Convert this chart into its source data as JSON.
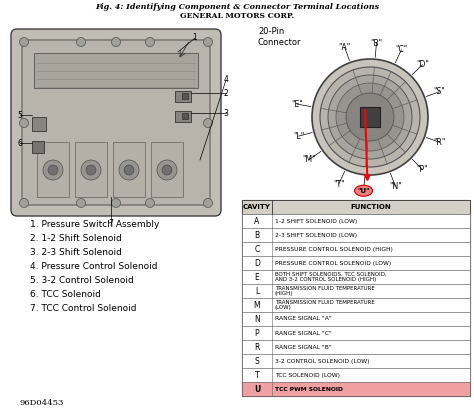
{
  "title_line1": "Fig. 4: Identifying Component & Connector Terminal Locations",
  "title_line2": "GENERAL MOTORS CORP.",
  "bg_color": "#e8e6e0",
  "white": "#ffffff",
  "table_header": [
    "CAVITY",
    "FUNCTION"
  ],
  "table_rows": [
    [
      "A",
      "1-2 SHIFT SOLENOID (LOW)"
    ],
    [
      "B",
      "2-3 SHIFT SOLENOID (LOW)"
    ],
    [
      "C",
      "PRESSURE CONTROL SOLENOID (HIGH)"
    ],
    [
      "D",
      "PRESSURE CONTROL SOLENOID (LOW)"
    ],
    [
      "E",
      "BOTH SHIFT SOLENOIDS, TCC SOLENOID,\nAND 3-2 CONTROL SOLENOID (HIGH)"
    ],
    [
      "L",
      "TRANSMISSION FLUID TEMPERATURE\n(HIGH)"
    ],
    [
      "M",
      "TRANSMISSION FLUID TEMPERATURE\n(LOW)"
    ],
    [
      "N",
      "RANGE SIGNAL \"A\""
    ],
    [
      "P",
      "RANGE SIGNAL \"C\""
    ],
    [
      "R",
      "RANGE SIGNAL \"B\""
    ],
    [
      "S",
      "3-2 CONTROL SOLENOID (LOW)"
    ],
    [
      "T",
      "TCC SOLENOID (LOW)"
    ],
    [
      "U",
      "TCC PWM SOLENOID"
    ]
  ],
  "last_row_highlight": "#f0a0a0",
  "legend_items": [
    "1. Pressure Switch Assembly",
    "2. 1-2 Shift Solenoid",
    "3. 2-3 Shift Solenoid",
    "4. Pressure Control Solenoid",
    "5. 3-2 Control Solenoid",
    "6. TCC Solenoid",
    "7. TCC Control Solenoid"
  ],
  "doc_number": "96D04453",
  "connector_label_text": "20-Pin\nConnector",
  "pin_angles_deg": [
    110,
    85,
    65,
    45,
    20,
    340,
    315,
    290,
    265,
    245,
    215,
    195,
    170
  ],
  "pin_labels": [
    "\"A\"",
    "\"B\"",
    "\"C\"",
    "\"D\"",
    "\"S\"",
    "\"R\"",
    "\"P\"",
    "\"N\"",
    "\"U\"",
    "\"T\"",
    "\"M\"",
    "\"L\"",
    "\"E\""
  ],
  "u_pin_idx": 8
}
